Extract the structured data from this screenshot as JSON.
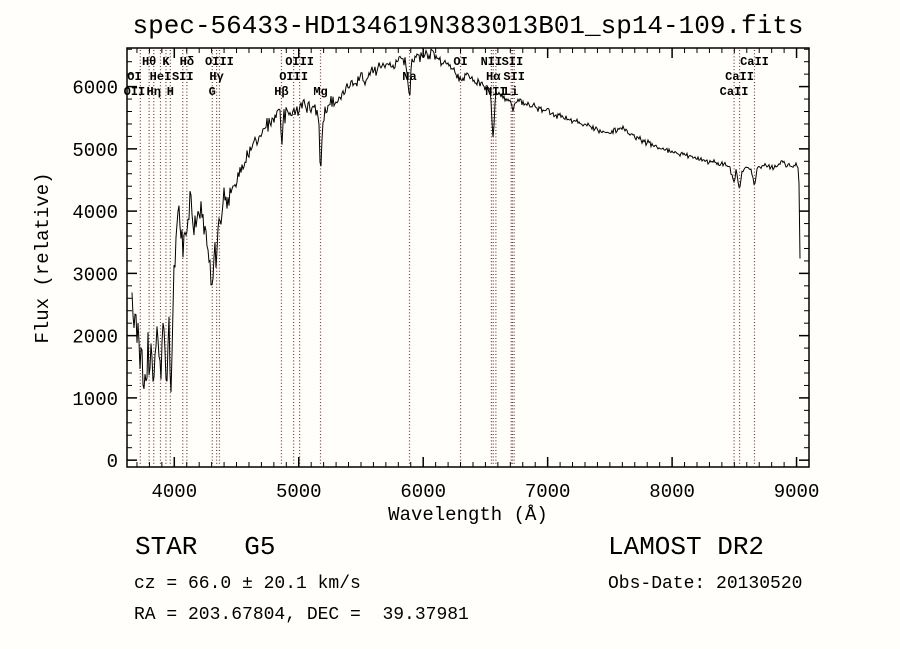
{
  "title": "spec-56433-HD134619N383013B01_sp14-109.fits",
  "footer": {
    "class_label": "STAR   G5",
    "cz_line": "cz = 66.0 ± 20.1 km/s",
    "radec_line": "RA = 203.67804, DEC =  39.37981",
    "survey": "LAMOST DR2",
    "obs_date": "Obs-Date: 20130520"
  },
  "chart_data": {
    "type": "line",
    "title": "spec-56433-HD134619N383013B01_sp14-109.fits",
    "xlabel": "Wavelength (Å)",
    "ylabel": "Flux (relative)",
    "xlim": [
      3620,
      9100
    ],
    "ylim": [
      -110,
      6620
    ],
    "x_ticks": [
      4000,
      5000,
      6000,
      7000,
      8000,
      9000
    ],
    "y_ticks": [
      0,
      1000,
      2000,
      3000,
      4000,
      5000,
      6000
    ],
    "x_minor_step": 100,
    "y_minor_step": 200,
    "grid": false,
    "legend": "none",
    "spectrum_color": "#000000",
    "marker_line_color": "#703a3a",
    "marker_wavelengths": [
      3727,
      3798,
      3835,
      3889,
      3933,
      3968,
      4068,
      4101,
      4305,
      4340,
      4363,
      4861,
      4959,
      5007,
      5175,
      5890,
      6300,
      6548,
      6563,
      6584,
      6707,
      6717,
      6731,
      8498,
      8542,
      8662
    ],
    "line_labels": [
      {
        "text": "Hθ",
        "wavelength": 3798,
        "row": 1
      },
      {
        "text": "K",
        "wavelength": 3933,
        "row": 1
      },
      {
        "text": "Hδ",
        "wavelength": 4101,
        "row": 1
      },
      {
        "text": "OIII",
        "wavelength": 4363,
        "row": 1
      },
      {
        "text": "OIII",
        "wavelength": 5007,
        "row": 1
      },
      {
        "text": "OI",
        "wavelength": 6300,
        "row": 1
      },
      {
        "text": "NII",
        "wavelength": 6548,
        "row": 1
      },
      {
        "text": "SII",
        "wavelength": 6717,
        "row": 1
      },
      {
        "text": "CaII",
        "wavelength": 8662,
        "row": 1
      },
      {
        "text": "OI",
        "wavelength": 3680,
        "row": 2
      },
      {
        "text": "HeI",
        "wavelength": 3889,
        "row": 2
      },
      {
        "text": "SII",
        "wavelength": 4068,
        "row": 2
      },
      {
        "text": "Hγ",
        "wavelength": 4340,
        "row": 2
      },
      {
        "text": "OIII",
        "wavelength": 4959,
        "row": 2
      },
      {
        "text": "Na",
        "wavelength": 5890,
        "row": 2
      },
      {
        "text": "Hα",
        "wavelength": 6563,
        "row": 2
      },
      {
        "text": "SII",
        "wavelength": 6731,
        "row": 2
      },
      {
        "text": "CaII",
        "wavelength": 8542,
        "row": 2
      },
      {
        "text": "OII",
        "wavelength": 3680,
        "row": 3
      },
      {
        "text": "Hη",
        "wavelength": 3835,
        "row": 3
      },
      {
        "text": "H",
        "wavelength": 3968,
        "row": 3
      },
      {
        "text": "G",
        "wavelength": 4305,
        "row": 3
      },
      {
        "text": "Hβ",
        "wavelength": 4861,
        "row": 3
      },
      {
        "text": "Mg",
        "wavelength": 5175,
        "row": 3
      },
      {
        "text": "NII",
        "wavelength": 6584,
        "row": 3
      },
      {
        "text": "Li",
        "wavelength": 6707,
        "row": 3
      },
      {
        "text": "CaII",
        "wavelength": 8498,
        "row": 3
      }
    ],
    "series": [
      {
        "name": "flux",
        "keypoints": [
          [
            3660,
            2600
          ],
          [
            3672,
            2050
          ],
          [
            3684,
            2400
          ],
          [
            3700,
            1750
          ],
          [
            3714,
            2050
          ],
          [
            3727,
            1400
          ],
          [
            3738,
            1800
          ],
          [
            3750,
            950
          ],
          [
            3762,
            1600
          ],
          [
            3775,
            1250
          ],
          [
            3788,
            1900
          ],
          [
            3800,
            1350
          ],
          [
            3812,
            1950
          ],
          [
            3824,
            1400
          ],
          [
            3835,
            1100
          ],
          [
            3848,
            1700
          ],
          [
            3860,
            2250
          ],
          [
            3874,
            1750
          ],
          [
            3889,
            1400
          ],
          [
            3902,
            1950
          ],
          [
            3916,
            2350
          ],
          [
            3933,
            1050
          ],
          [
            3946,
            1750
          ],
          [
            3958,
            2450
          ],
          [
            3968,
            720
          ],
          [
            3980,
            1550
          ],
          [
            3993,
            2700
          ],
          [
            4006,
            3250
          ],
          [
            4020,
            3700
          ],
          [
            4040,
            3850
          ],
          [
            4055,
            3700
          ],
          [
            4068,
            3450
          ],
          [
            4082,
            3850
          ],
          [
            4101,
            3400
          ],
          [
            4112,
            3900
          ],
          [
            4125,
            4350
          ],
          [
            4138,
            3950
          ],
          [
            4158,
            3800
          ],
          [
            4178,
            3950
          ],
          [
            4198,
            3750
          ],
          [
            4218,
            3950
          ],
          [
            4238,
            3600
          ],
          [
            4258,
            3800
          ],
          [
            4278,
            3300
          ],
          [
            4300,
            2650
          ],
          [
            4315,
            3100
          ],
          [
            4328,
            3500
          ],
          [
            4340,
            3050
          ],
          [
            4355,
            3700
          ],
          [
            4372,
            3950
          ],
          [
            4390,
            4150
          ],
          [
            4410,
            4050
          ],
          [
            4430,
            4250
          ],
          [
            4450,
            4400
          ],
          [
            4470,
            4350
          ],
          [
            4490,
            4550
          ],
          [
            4510,
            4500
          ],
          [
            4530,
            4650
          ],
          [
            4560,
            4800
          ],
          [
            4590,
            4900
          ],
          [
            4620,
            5000
          ],
          [
            4650,
            5100
          ],
          [
            4680,
            5200
          ],
          [
            4710,
            5250
          ],
          [
            4740,
            5350
          ],
          [
            4770,
            5400
          ],
          [
            4800,
            5500
          ],
          [
            4830,
            5550
          ],
          [
            4850,
            5600
          ],
          [
            4861,
            4900
          ],
          [
            4875,
            5500
          ],
          [
            4900,
            5600
          ],
          [
            4930,
            5550
          ],
          [
            4960,
            5650
          ],
          [
            5000,
            5600
          ],
          [
            5040,
            5700
          ],
          [
            5080,
            5650
          ],
          [
            5120,
            5700
          ],
          [
            5160,
            5600
          ],
          [
            5175,
            4450
          ],
          [
            5190,
            5350
          ],
          [
            5210,
            5600
          ],
          [
            5240,
            5700
          ],
          [
            5270,
            5750
          ],
          [
            5300,
            5750
          ],
          [
            5340,
            5850
          ],
          [
            5380,
            5950
          ],
          [
            5420,
            6050
          ],
          [
            5460,
            6000
          ],
          [
            5500,
            6150
          ],
          [
            5540,
            6100
          ],
          [
            5580,
            6250
          ],
          [
            5620,
            6200
          ],
          [
            5660,
            6350
          ],
          [
            5700,
            6300
          ],
          [
            5740,
            6400
          ],
          [
            5780,
            6350
          ],
          [
            5820,
            6450
          ],
          [
            5860,
            6400
          ],
          [
            5890,
            5800
          ],
          [
            5905,
            6350
          ],
          [
            5930,
            6450
          ],
          [
            5960,
            6500
          ],
          [
            6000,
            6450
          ],
          [
            6040,
            6550
          ],
          [
            6080,
            6500
          ],
          [
            6120,
            6450
          ],
          [
            6160,
            6400
          ],
          [
            6200,
            6350
          ],
          [
            6250,
            6250
          ],
          [
            6300,
            6100
          ],
          [
            6350,
            6200
          ],
          [
            6400,
            6100
          ],
          [
            6450,
            6050
          ],
          [
            6500,
            6000
          ],
          [
            6540,
            5950
          ],
          [
            6563,
            5100
          ],
          [
            6580,
            5900
          ],
          [
            6620,
            5850
          ],
          [
            6660,
            5800
          ],
          [
            6700,
            5780
          ],
          [
            6717,
            5620
          ],
          [
            6731,
            5680
          ],
          [
            6760,
            5780
          ],
          [
            6800,
            5750
          ],
          [
            6850,
            5700
          ],
          [
            6900,
            5680
          ],
          [
            6950,
            5640
          ],
          [
            7000,
            5600
          ],
          [
            7060,
            5550
          ],
          [
            7120,
            5500
          ],
          [
            7180,
            5470
          ],
          [
            7240,
            5430
          ],
          [
            7300,
            5400
          ],
          [
            7360,
            5330
          ],
          [
            7420,
            5280
          ],
          [
            7480,
            5260
          ],
          [
            7540,
            5300
          ],
          [
            7600,
            5340
          ],
          [
            7650,
            5280
          ],
          [
            7700,
            5200
          ],
          [
            7760,
            5130
          ],
          [
            7820,
            5080
          ],
          [
            7880,
            5020
          ],
          [
            7940,
            4980
          ],
          [
            8000,
            4950
          ],
          [
            8060,
            4920
          ],
          [
            8120,
            4890
          ],
          [
            8180,
            4860
          ],
          [
            8240,
            4830
          ],
          [
            8300,
            4800
          ],
          [
            8360,
            4770
          ],
          [
            8420,
            4740
          ],
          [
            8460,
            4720
          ],
          [
            8498,
            4480
          ],
          [
            8515,
            4680
          ],
          [
            8542,
            4340
          ],
          [
            8560,
            4650
          ],
          [
            8600,
            4700
          ],
          [
            8630,
            4680
          ],
          [
            8662,
            4400
          ],
          [
            8680,
            4680
          ],
          [
            8720,
            4720
          ],
          [
            8760,
            4750
          ],
          [
            8800,
            4700
          ],
          [
            8840,
            4730
          ],
          [
            8880,
            4780
          ],
          [
            8920,
            4750
          ],
          [
            8960,
            4720
          ],
          [
            9000,
            4740
          ],
          [
            9015,
            4680
          ],
          [
            9022,
            4300
          ],
          [
            9027,
            3400
          ],
          [
            9030,
            2550
          ]
        ]
      }
    ],
    "noise": {
      "seed": 12345,
      "segments": [
        [
          3660,
          3995,
          270
        ],
        [
          3995,
          4460,
          250
        ],
        [
          4460,
          4900,
          140
        ],
        [
          4900,
          5400,
          120
        ],
        [
          5400,
          6160,
          105
        ],
        [
          6160,
          6600,
          65
        ],
        [
          6600,
          7200,
          55
        ],
        [
          7200,
          8200,
          48
        ],
        [
          8200,
          9010,
          42
        ],
        [
          9010,
          9030,
          25
        ]
      ]
    }
  }
}
